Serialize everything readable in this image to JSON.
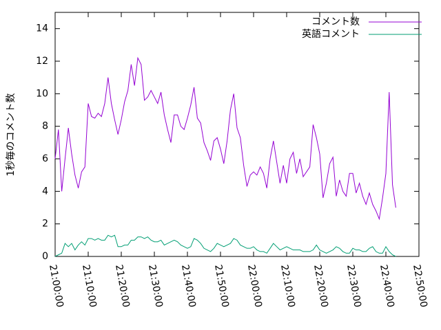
{
  "chart_data": {
    "type": "line",
    "y_label": "1秒毎のコメント数",
    "x": [
      "21:00:00",
      "21:01:00",
      "21:02:00",
      "21:03:00",
      "21:04:00",
      "21:05:00",
      "21:06:00",
      "21:07:00",
      "21:08:00",
      "21:09:00",
      "21:10:00",
      "21:11:00",
      "21:12:00",
      "21:13:00",
      "21:14:00",
      "21:15:00",
      "21:16:00",
      "21:17:00",
      "21:18:00",
      "21:19:00",
      "21:20:00",
      "21:21:00",
      "21:22:00",
      "21:23:00",
      "21:24:00",
      "21:25:00",
      "21:26:00",
      "21:27:00",
      "21:28:00",
      "21:29:00",
      "21:30:00",
      "21:31:00",
      "21:32:00",
      "21:33:00",
      "21:34:00",
      "21:35:00",
      "21:36:00",
      "21:37:00",
      "21:38:00",
      "21:39:00",
      "21:40:00",
      "21:41:00",
      "21:42:00",
      "21:43:00",
      "21:44:00",
      "21:45:00",
      "21:46:00",
      "21:47:00",
      "21:48:00",
      "21:49:00",
      "21:50:00",
      "21:51:00",
      "21:52:00",
      "21:53:00",
      "21:54:00",
      "21:55:00",
      "21:56:00",
      "21:57:00",
      "21:58:00",
      "21:59:00",
      "22:00:00",
      "22:01:00",
      "22:02:00",
      "22:03:00",
      "22:04:00",
      "22:05:00",
      "22:06:00",
      "22:07:00",
      "22:08:00",
      "22:09:00",
      "22:10:00",
      "22:11:00",
      "22:12:00",
      "22:13:00",
      "22:14:00",
      "22:15:00",
      "22:16:00",
      "22:17:00",
      "22:18:00",
      "22:19:00",
      "22:20:00",
      "22:21:00",
      "22:22:00",
      "22:23:00",
      "22:24:00",
      "22:25:00",
      "22:26:00",
      "22:27:00",
      "22:28:00",
      "22:29:00",
      "22:30:00",
      "22:31:00",
      "22:32:00",
      "22:33:00",
      "22:34:00",
      "22:35:00",
      "22:36:00",
      "22:37:00",
      "22:38:00",
      "22:39:00",
      "22:40:00",
      "22:41:00",
      "22:42:00",
      "22:43:00"
    ],
    "series": [
      {
        "name": "コメント数",
        "color": "#9400d3",
        "values": [
          6.0,
          7.8,
          4.0,
          6.0,
          7.9,
          6.3,
          5.0,
          4.2,
          5.2,
          5.5,
          9.4,
          8.6,
          8.5,
          8.8,
          8.6,
          9.4,
          11.0,
          9.4,
          8.4,
          7.5,
          8.4,
          9.5,
          10.2,
          11.8,
          10.5,
          12.2,
          11.8,
          9.6,
          9.8,
          10.2,
          9.8,
          9.4,
          10.1,
          8.7,
          7.8,
          7.0,
          8.7,
          8.7,
          8.0,
          7.8,
          8.5,
          9.3,
          10.4,
          8.5,
          8.2,
          7.0,
          6.5,
          5.9,
          7.1,
          7.3,
          6.6,
          5.7,
          7.1,
          9.0,
          10.0,
          7.9,
          7.3,
          5.6,
          4.3,
          5.0,
          5.2,
          5.0,
          5.5,
          5.1,
          4.2,
          6.0,
          7.1,
          5.8,
          4.5,
          5.6,
          4.5,
          6.0,
          6.4,
          5.1,
          6.0,
          4.9,
          5.2,
          5.5,
          8.1,
          7.3,
          6.3,
          3.6,
          4.5,
          5.7,
          6.1,
          3.7,
          4.7,
          4.0,
          3.7,
          5.1,
          5.1,
          3.9,
          4.5,
          3.7,
          3.2,
          3.9,
          3.2,
          2.8,
          2.3,
          3.6,
          5.1,
          10.1,
          4.4,
          3.0
        ]
      },
      {
        "name": "英語コメント",
        "color": "#009e73",
        "values": [
          0.0,
          0.1,
          0.2,
          0.8,
          0.6,
          0.8,
          0.4,
          0.7,
          0.9,
          0.7,
          1.1,
          1.1,
          1.0,
          1.1,
          1.0,
          1.0,
          1.3,
          1.2,
          1.3,
          0.6,
          0.6,
          0.7,
          0.7,
          1.0,
          1.0,
          1.2,
          1.2,
          1.1,
          1.2,
          1.0,
          0.9,
          0.9,
          1.0,
          0.7,
          0.8,
          0.9,
          1.0,
          0.9,
          0.7,
          0.6,
          0.5,
          0.6,
          1.1,
          1.0,
          0.8,
          0.5,
          0.4,
          0.3,
          0.5,
          0.8,
          0.7,
          0.6,
          0.7,
          0.8,
          1.1,
          1.0,
          0.7,
          0.6,
          0.5,
          0.5,
          0.6,
          0.4,
          0.3,
          0.3,
          0.2,
          0.5,
          0.8,
          0.6,
          0.4,
          0.5,
          0.6,
          0.5,
          0.4,
          0.4,
          0.4,
          0.3,
          0.3,
          0.3,
          0.4,
          0.7,
          0.4,
          0.3,
          0.2,
          0.3,
          0.4,
          0.6,
          0.5,
          0.3,
          0.2,
          0.2,
          0.5,
          0.4,
          0.4,
          0.3,
          0.3,
          0.5,
          0.6,
          0.3,
          0.2,
          0.2,
          0.6,
          0.3,
          0.1,
          0.0
        ]
      }
    ],
    "xlim": [
      "21:00:00",
      "22:50:00"
    ],
    "xticks": [
      "21:00:00",
      "21:10:00",
      "21:20:00",
      "21:30:00",
      "21:40:00",
      "21:50:00",
      "22:00:00",
      "22:10:00",
      "22:20:00",
      "22:30:00",
      "22:40:00",
      "22:50:00"
    ],
    "ylim": [
      0,
      15
    ],
    "yticks": [
      0,
      2,
      4,
      6,
      8,
      10,
      12,
      14
    ],
    "legend": "top-right",
    "grid": false
  }
}
